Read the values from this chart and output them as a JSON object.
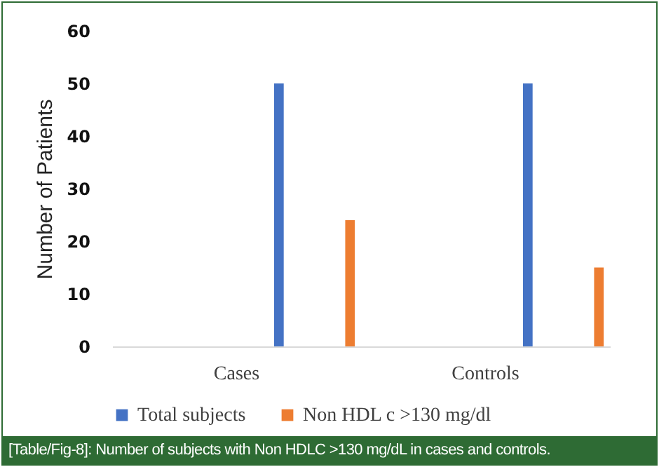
{
  "chart_data": {
    "type": "bar",
    "ylabel": "Number of Patients",
    "categories": [
      "Cases",
      "Controls"
    ],
    "series": [
      {
        "name": "Total subjects",
        "color": "#4472c4",
        "values": [
          50,
          50
        ]
      },
      {
        "name": "Non HDL c >130 mg/dl",
        "color": "#ed7d31",
        "values": [
          24,
          15
        ]
      }
    ],
    "ylim": [
      0,
      60
    ],
    "yticks": [
      0,
      10,
      20,
      30,
      40,
      50,
      60
    ],
    "grid": false,
    "legend": "bottom",
    "annotations": [
      "[Table/Fig-8]: Number of subjects with Non HDLC >130 mg/dL in cases and controls."
    ]
  }
}
